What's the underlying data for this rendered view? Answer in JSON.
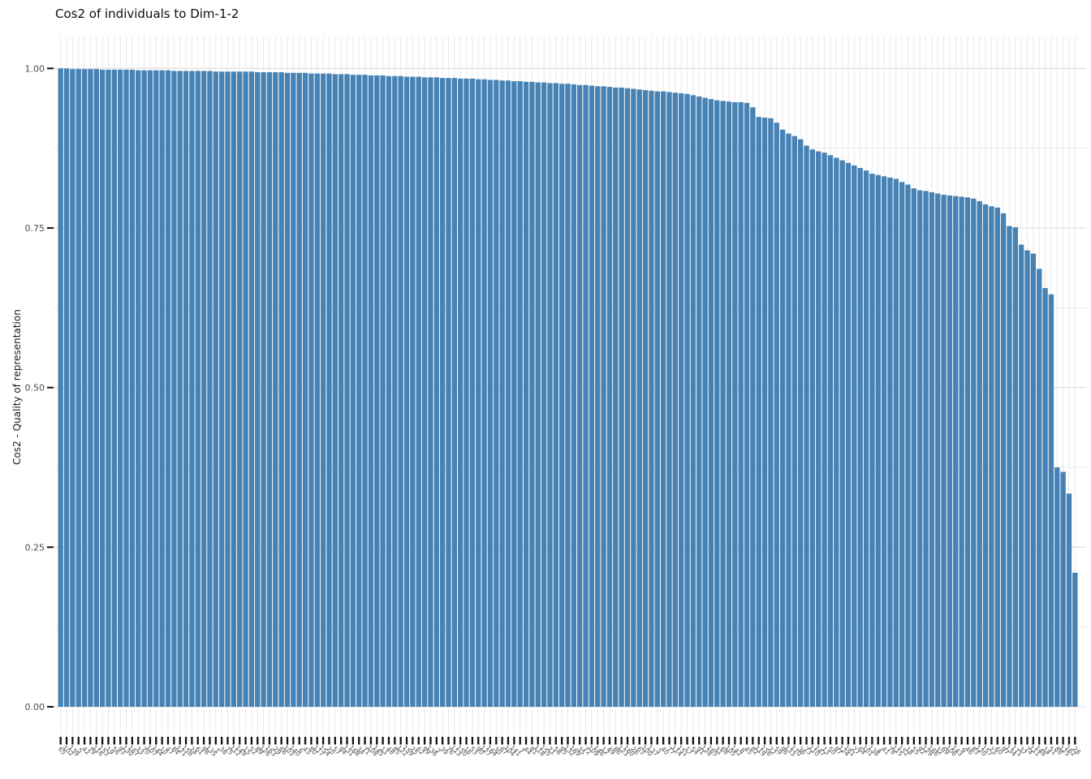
{
  "header": {
    "title": "Cos2 of individuals to Dim-1-2"
  },
  "colors": {
    "bar": "#4682B4",
    "grid_minor": "#e9e9e9",
    "grid_major": "#e1e1e1",
    "axis_text": "#4d4d4d",
    "tick_mark": "#111111",
    "panel_background": "#ffffff"
  },
  "chart_data": {
    "type": "bar",
    "title": "Cos2 of individuals to Dim-1-2",
    "xlabel": "",
    "ylabel": "Cos2 - Quality of representation",
    "ylim": [
      0,
      1
    ],
    "y_tick_labels": [
      "1.00",
      "0.75",
      "0.50",
      "0.25",
      "0.00"
    ],
    "y_tick_values": [
      1.0,
      0.75,
      0.5,
      0.25,
      0.0
    ],
    "y_minor_values": [
      0.875,
      0.625,
      0.375,
      0.125
    ],
    "grid": "on",
    "legend": "none",
    "sorted": "descending",
    "x_tick_rotation": 45,
    "categories": [
      "65",
      "102",
      "139",
      "5",
      "42",
      "79",
      "116",
      "153",
      "19",
      "56",
      "93",
      "130",
      "167",
      "33",
      "70",
      "107",
      "144",
      "10",
      "47",
      "84",
      "121",
      "158",
      "24",
      "61",
      "98",
      "135",
      "1",
      "38",
      "75",
      "112",
      "149",
      "15",
      "52",
      "89",
      "126",
      "163",
      "29",
      "66",
      "103",
      "140",
      "6",
      "43",
      "80",
      "117",
      "154",
      "20",
      "57",
      "94",
      "131",
      "168",
      "34",
      "71",
      "108",
      "145",
      "11",
      "48",
      "85",
      "122",
      "159",
      "25",
      "62",
      "99",
      "136",
      "2",
      "39",
      "76",
      "113",
      "150",
      "16",
      "53",
      "90",
      "127",
      "164",
      "30",
      "67",
      "104",
      "141",
      "7",
      "44",
      "81",
      "118",
      "155",
      "21",
      "58",
      "95",
      "132",
      "169",
      "35",
      "72",
      "109",
      "146",
      "12",
      "49",
      "86",
      "123",
      "160",
      "26",
      "63",
      "100",
      "137",
      "3",
      "40",
      "77",
      "114",
      "151",
      "17",
      "54",
      "91",
      "128",
      "165",
      "31",
      "68",
      "105",
      "142",
      "8",
      "45",
      "82",
      "119",
      "156",
      "22",
      "59",
      "96",
      "133",
      "170",
      "36",
      "73",
      "110",
      "147",
      "13",
      "50",
      "87",
      "124",
      "161",
      "27",
      "64",
      "101",
      "138",
      "4",
      "41",
      "78",
      "115",
      "152",
      "18",
      "55",
      "92",
      "129",
      "166",
      "32",
      "69",
      "106",
      "143",
      "9",
      "46",
      "83",
      "120",
      "157",
      "23",
      "60",
      "97",
      "134",
      "171",
      "37",
      "74",
      "111",
      "148",
      "14",
      "51",
      "88",
      "125",
      "162",
      "28"
    ],
    "values": [
      1.0,
      1.0,
      0.999,
      0.999,
      0.999,
      0.999,
      0.999,
      0.998,
      0.998,
      0.998,
      0.998,
      0.998,
      0.998,
      0.997,
      0.997,
      0.997,
      0.997,
      0.997,
      0.997,
      0.996,
      0.996,
      0.996,
      0.996,
      0.996,
      0.996,
      0.996,
      0.995,
      0.995,
      0.995,
      0.995,
      0.995,
      0.995,
      0.995,
      0.994,
      0.994,
      0.994,
      0.994,
      0.994,
      0.993,
      0.993,
      0.993,
      0.993,
      0.992,
      0.992,
      0.992,
      0.992,
      0.991,
      0.991,
      0.991,
      0.99,
      0.99,
      0.99,
      0.989,
      0.989,
      0.989,
      0.988,
      0.988,
      0.988,
      0.987,
      0.987,
      0.987,
      0.986,
      0.986,
      0.986,
      0.985,
      0.985,
      0.985,
      0.984,
      0.984,
      0.984,
      0.983,
      0.983,
      0.982,
      0.982,
      0.981,
      0.981,
      0.98,
      0.98,
      0.979,
      0.979,
      0.978,
      0.978,
      0.977,
      0.977,
      0.976,
      0.976,
      0.975,
      0.974,
      0.974,
      0.973,
      0.972,
      0.972,
      0.971,
      0.97,
      0.97,
      0.969,
      0.968,
      0.967,
      0.966,
      0.965,
      0.964,
      0.964,
      0.963,
      0.962,
      0.961,
      0.96,
      0.958,
      0.956,
      0.954,
      0.952,
      0.95,
      0.949,
      0.948,
      0.947,
      0.947,
      0.946,
      0.939,
      0.924,
      0.923,
      0.922,
      0.915,
      0.904,
      0.898,
      0.894,
      0.889,
      0.879,
      0.873,
      0.87,
      0.868,
      0.864,
      0.86,
      0.856,
      0.852,
      0.848,
      0.844,
      0.84,
      0.835,
      0.833,
      0.831,
      0.829,
      0.827,
      0.822,
      0.818,
      0.812,
      0.809,
      0.808,
      0.806,
      0.804,
      0.802,
      0.801,
      0.8,
      0.799,
      0.798,
      0.796,
      0.792,
      0.787,
      0.784,
      0.782,
      0.773,
      0.753,
      0.751,
      0.724,
      0.715,
      0.71,
      0.686,
      0.656,
      0.646,
      0.375,
      0.368,
      0.334,
      0.21
    ]
  }
}
